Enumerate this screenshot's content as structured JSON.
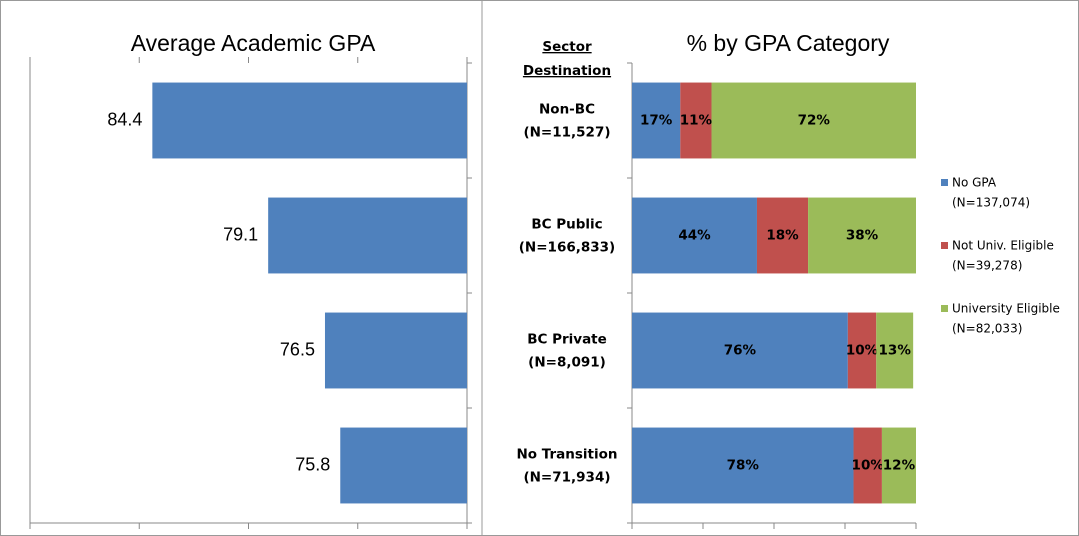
{
  "chart_data": [
    {
      "type": "bar",
      "title": "Average Academic GPA",
      "orientation": "horizontal",
      "x_reversed": true,
      "values": [
        84.4,
        79.1,
        76.5,
        75.8
      ],
      "color": "#4f81bd",
      "xlim": [
        70,
        90
      ],
      "xticks": [
        70,
        75,
        80,
        85,
        90
      ]
    },
    {
      "type": "stacked_bar",
      "title": "% by GPA Category",
      "orientation": "horizontal",
      "category_header": [
        "Sector",
        "Destination"
      ],
      "categories": [
        [
          "Non-BC",
          "(N=11,527)"
        ],
        [
          "BC Public",
          "(N=166,833)"
        ],
        [
          "BC Private",
          "(N=8,091)"
        ],
        [
          "No Transition",
          "(N=71,934)"
        ]
      ],
      "series": [
        {
          "name": [
            "No GPA",
            "(N=137,074)"
          ],
          "color": "#4f81bd",
          "values": [
            17,
            44,
            76,
            78
          ],
          "value_labels": [
            "17%",
            "44%",
            "76%",
            "78%"
          ]
        },
        {
          "name": [
            "Not Univ. Eligible",
            "(N=39,278)"
          ],
          "color": "#c0504d",
          "values": [
            11,
            18,
            10,
            10
          ],
          "value_labels": [
            "11%",
            "18%",
            "10%",
            "10%"
          ]
        },
        {
          "name": [
            "University Eligible",
            "(N=82,033)"
          ],
          "color": "#9bbb59",
          "values": [
            72,
            38,
            13,
            12
          ],
          "value_labels": [
            "72%",
            "38%",
            "13%",
            "12%"
          ]
        }
      ],
      "xlim": [
        0,
        100
      ],
      "xticks": [
        0,
        25,
        50,
        75,
        100
      ],
      "legend": "right"
    }
  ]
}
